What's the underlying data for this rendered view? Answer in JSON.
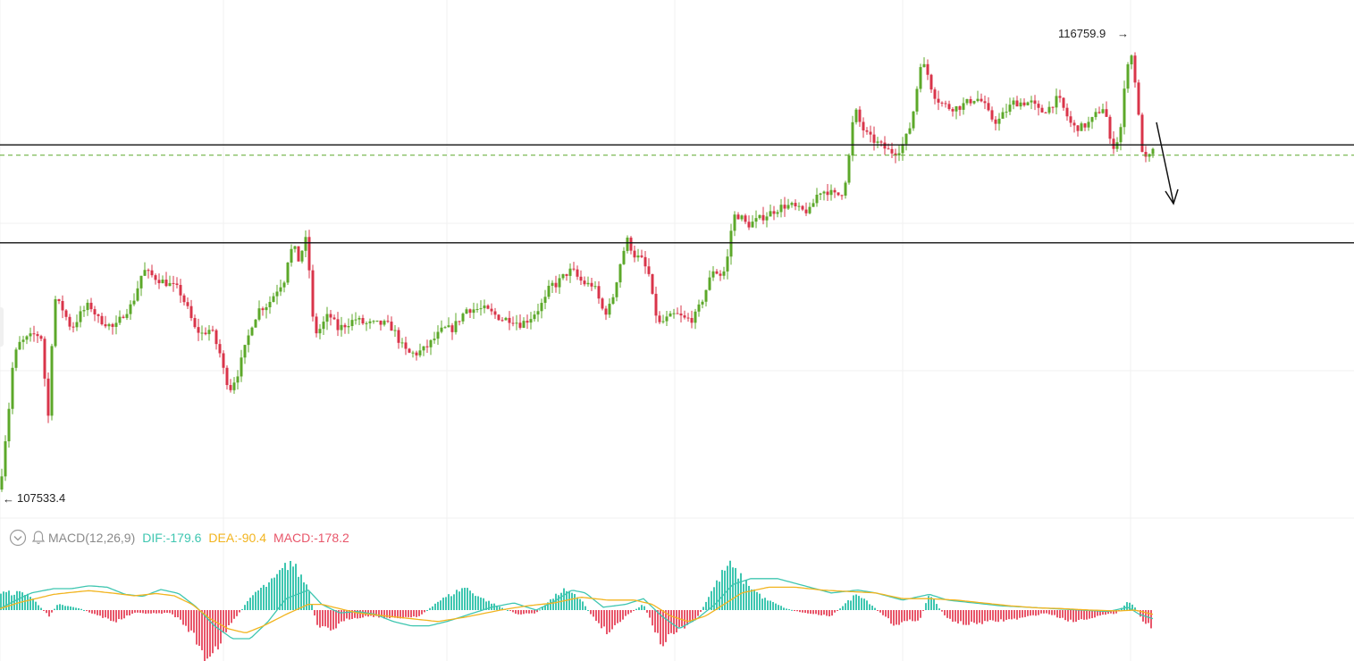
{
  "colors": {
    "up": "#5ca82a",
    "down": "#d9344a",
    "dif": "#3ec6b0",
    "dea": "#f2b41f",
    "macd_pos": "#3ec6b0",
    "macd_neg": "#e8566a",
    "level_line": "#111111",
    "dashed_line": "#5ca82a",
    "grid": "#f0f0f0"
  },
  "labels": {
    "high_price": "116759.9",
    "low_price": "107533.4"
  },
  "indicator": {
    "name": "MACD(12,26,9)",
    "dif": "DIF:-179.6",
    "dea": "DEA:-90.4",
    "macd": "MACD:-178.2",
    "icons": [
      "collapse-chevron-icon",
      "alert-bell-icon"
    ]
  },
  "chart_data": {
    "type": "candlestick",
    "price_max": 116759.9,
    "price_min": 107533.4,
    "horizontal_levels": [
      114540,
      112550
    ],
    "dashed_level": 114330,
    "projection_arrow": "down",
    "close_path": [
      [
        0,
        107533
      ],
      [
        5,
        108400
      ],
      [
        10,
        109200
      ],
      [
        15,
        110200
      ],
      [
        22,
        110500
      ],
      [
        30,
        110600
      ],
      [
        40,
        110700
      ],
      [
        48,
        110600
      ],
      [
        53,
        108600
      ],
      [
        57,
        110300
      ],
      [
        62,
        111400
      ],
      [
        70,
        111200
      ],
      [
        80,
        110800
      ],
      [
        90,
        111100
      ],
      [
        100,
        111300
      ],
      [
        110,
        111000
      ],
      [
        120,
        110900
      ],
      [
        128,
        110800
      ],
      [
        138,
        111100
      ],
      [
        148,
        111300
      ],
      [
        155,
        111700
      ],
      [
        160,
        112000
      ],
      [
        168,
        111900
      ],
      [
        178,
        111800
      ],
      [
        190,
        111700
      ],
      [
        200,
        111600
      ],
      [
        210,
        111200
      ],
      [
        218,
        110800
      ],
      [
        226,
        110700
      ],
      [
        236,
        110800
      ],
      [
        246,
        110300
      ],
      [
        252,
        109800
      ],
      [
        258,
        109600
      ],
      [
        266,
        109900
      ],
      [
        274,
        110400
      ],
      [
        282,
        110900
      ],
      [
        290,
        111200
      ],
      [
        300,
        111300
      ],
      [
        310,
        111600
      ],
      [
        318,
        111800
      ],
      [
        322,
        112200
      ],
      [
        328,
        112500
      ],
      [
        334,
        112200
      ],
      [
        338,
        112400
      ],
      [
        344,
        112700
      ],
      [
        348,
        111300
      ],
      [
        352,
        110700
      ],
      [
        358,
        110800
      ],
      [
        368,
        111100
      ],
      [
        378,
        110800
      ],
      [
        388,
        110900
      ],
      [
        398,
        111000
      ],
      [
        408,
        110900
      ],
      [
        420,
        110900
      ],
      [
        432,
        110900
      ],
      [
        440,
        110800
      ],
      [
        448,
        110500
      ],
      [
        456,
        110300
      ],
      [
        466,
        110300
      ],
      [
        476,
        110400
      ],
      [
        486,
        110600
      ],
      [
        496,
        110800
      ],
      [
        506,
        110800
      ],
      [
        514,
        111000
      ],
      [
        522,
        111200
      ],
      [
        532,
        111200
      ],
      [
        542,
        111200
      ],
      [
        552,
        111100
      ],
      [
        562,
        111000
      ],
      [
        572,
        111000
      ],
      [
        582,
        110900
      ],
      [
        592,
        111000
      ],
      [
        602,
        111200
      ],
      [
        610,
        111400
      ],
      [
        616,
        111700
      ],
      [
        622,
        111700
      ],
      [
        632,
        111900
      ],
      [
        640,
        112000
      ],
      [
        648,
        111800
      ],
      [
        656,
        111700
      ],
      [
        664,
        111700
      ],
      [
        670,
        111400
      ],
      [
        676,
        111100
      ],
      [
        684,
        111300
      ],
      [
        690,
        111800
      ],
      [
        696,
        112300
      ],
      [
        702,
        112600
      ],
      [
        710,
        112300
      ],
      [
        718,
        112200
      ],
      [
        726,
        111900
      ],
      [
        732,
        111200
      ],
      [
        738,
        110900
      ],
      [
        746,
        111000
      ],
      [
        756,
        111100
      ],
      [
        766,
        111000
      ],
      [
        776,
        111000
      ],
      [
        784,
        111300
      ],
      [
        792,
        111700
      ],
      [
        798,
        112000
      ],
      [
        806,
        111900
      ],
      [
        812,
        112000
      ],
      [
        816,
        112500
      ],
      [
        820,
        113100
      ],
      [
        828,
        113100
      ],
      [
        836,
        112900
      ],
      [
        846,
        113000
      ],
      [
        856,
        113100
      ],
      [
        866,
        113200
      ],
      [
        876,
        113300
      ],
      [
        886,
        113300
      ],
      [
        896,
        113200
      ],
      [
        906,
        113200
      ],
      [
        916,
        113600
      ],
      [
        926,
        113600
      ],
      [
        936,
        113500
      ],
      [
        944,
        113600
      ],
      [
        950,
        114300
      ],
      [
        956,
        115300
      ],
      [
        964,
        114900
      ],
      [
        972,
        114700
      ],
      [
        980,
        114600
      ],
      [
        988,
        114500
      ],
      [
        996,
        114400
      ],
      [
        1004,
        114400
      ],
      [
        1012,
        114600
      ],
      [
        1020,
        115000
      ],
      [
        1026,
        115700
      ],
      [
        1030,
        116200
      ],
      [
        1036,
        116100
      ],
      [
        1044,
        115600
      ],
      [
        1052,
        115400
      ],
      [
        1062,
        115300
      ],
      [
        1072,
        115300
      ],
      [
        1082,
        115400
      ],
      [
        1092,
        115500
      ],
      [
        1100,
        115400
      ],
      [
        1108,
        115100
      ],
      [
        1116,
        115000
      ],
      [
        1124,
        115200
      ],
      [
        1134,
        115400
      ],
      [
        1144,
        115400
      ],
      [
        1154,
        115400
      ],
      [
        1164,
        115200
      ],
      [
        1174,
        115300
      ],
      [
        1184,
        115500
      ],
      [
        1192,
        115200
      ],
      [
        1200,
        114900
      ],
      [
        1210,
        114900
      ],
      [
        1220,
        115000
      ],
      [
        1228,
        115200
      ],
      [
        1234,
        115300
      ],
      [
        1238,
        115100
      ],
      [
        1242,
        114600
      ],
      [
        1248,
        114500
      ],
      [
        1254,
        114900
      ],
      [
        1260,
        116000
      ],
      [
        1264,
        116500
      ],
      [
        1268,
        116200
      ],
      [
        1272,
        115500
      ],
      [
        1276,
        114700
      ],
      [
        1280,
        114200
      ],
      [
        1286,
        114300
      ],
      [
        1290,
        114400
      ]
    ],
    "macd": {
      "hist_path": [
        [
          0,
          60
        ],
        [
          30,
          60
        ],
        [
          55,
          -20
        ],
        [
          65,
          20
        ],
        [
          90,
          5
        ],
        [
          110,
          -20
        ],
        [
          130,
          -40
        ],
        [
          150,
          -10
        ],
        [
          175,
          -12
        ],
        [
          190,
          -10
        ],
        [
          200,
          -30
        ],
        [
          215,
          -80
        ],
        [
          230,
          -170
        ],
        [
          245,
          -120
        ],
        [
          260,
          -40
        ],
        [
          285,
          60
        ],
        [
          305,
          100
        ],
        [
          325,
          170
        ],
        [
          345,
          80
        ],
        [
          355,
          -60
        ],
        [
          370,
          -70
        ],
        [
          390,
          -30
        ],
        [
          415,
          -20
        ],
        [
          440,
          -30
        ],
        [
          470,
          -20
        ],
        [
          490,
          30
        ],
        [
          520,
          80
        ],
        [
          540,
          40
        ],
        [
          560,
          10
        ],
        [
          580,
          -15
        ],
        [
          600,
          -10
        ],
        [
          610,
          20
        ],
        [
          630,
          70
        ],
        [
          650,
          40
        ],
        [
          660,
          -10
        ],
        [
          680,
          -80
        ],
        [
          700,
          -20
        ],
        [
          720,
          20
        ],
        [
          740,
          -120
        ],
        [
          755,
          -80
        ],
        [
          780,
          -30
        ],
        [
          795,
          60
        ],
        [
          815,
          160
        ],
        [
          830,
          110
        ],
        [
          855,
          40
        ],
        [
          880,
          5
        ],
        [
          900,
          -10
        ],
        [
          930,
          -20
        ],
        [
          960,
          60
        ],
        [
          980,
          5
        ],
        [
          1000,
          -50
        ],
        [
          1030,
          -30
        ],
        [
          1040,
          60
        ],
        [
          1050,
          10
        ],
        [
          1060,
          -30
        ],
        [
          1080,
          -50
        ],
        [
          1110,
          -40
        ],
        [
          1140,
          -30
        ],
        [
          1170,
          -10
        ],
        [
          1200,
          -40
        ],
        [
          1230,
          -20
        ],
        [
          1250,
          -10
        ],
        [
          1262,
          30
        ],
        [
          1270,
          10
        ],
        [
          1280,
          -40
        ],
        [
          1290,
          -60
        ]
      ],
      "dif_path": [
        [
          0,
          5
        ],
        [
          15,
          30
        ],
        [
          35,
          60
        ],
        [
          60,
          75
        ],
        [
          80,
          75
        ],
        [
          100,
          85
        ],
        [
          120,
          80
        ],
        [
          140,
          55
        ],
        [
          160,
          48
        ],
        [
          180,
          72
        ],
        [
          200,
          58
        ],
        [
          220,
          10
        ],
        [
          240,
          -55
        ],
        [
          260,
          -100
        ],
        [
          280,
          -100
        ],
        [
          300,
          -40
        ],
        [
          320,
          40
        ],
        [
          345,
          70
        ],
        [
          360,
          20
        ],
        [
          380,
          -10
        ],
        [
          400,
          -5
        ],
        [
          420,
          -15
        ],
        [
          440,
          -40
        ],
        [
          460,
          -55
        ],
        [
          480,
          -55
        ],
        [
          500,
          -40
        ],
        [
          520,
          -20
        ],
        [
          550,
          10
        ],
        [
          575,
          25
        ],
        [
          600,
          0
        ],
        [
          620,
          30
        ],
        [
          640,
          70
        ],
        [
          655,
          60
        ],
        [
          675,
          10
        ],
        [
          700,
          20
        ],
        [
          720,
          40
        ],
        [
          740,
          -20
        ],
        [
          760,
          -65
        ],
        [
          780,
          -30
        ],
        [
          800,
          20
        ],
        [
          820,
          90
        ],
        [
          840,
          110
        ],
        [
          870,
          110
        ],
        [
          900,
          85
        ],
        [
          930,
          60
        ],
        [
          960,
          70
        ],
        [
          980,
          60
        ],
        [
          1010,
          35
        ],
        [
          1040,
          55
        ],
        [
          1060,
          35
        ],
        [
          1090,
          25
        ],
        [
          1120,
          15
        ],
        [
          1150,
          10
        ],
        [
          1180,
          5
        ],
        [
          1210,
          0
        ],
        [
          1240,
          -5
        ],
        [
          1262,
          10
        ],
        [
          1275,
          -15
        ],
        [
          1290,
          -30
        ]
      ],
      "dea_path": [
        [
          0,
          5
        ],
        [
          20,
          25
        ],
        [
          40,
          40
        ],
        [
          60,
          55
        ],
        [
          80,
          62
        ],
        [
          100,
          68
        ],
        [
          130,
          58
        ],
        [
          150,
          50
        ],
        [
          175,
          58
        ],
        [
          195,
          50
        ],
        [
          215,
          20
        ],
        [
          235,
          -30
        ],
        [
          255,
          -65
        ],
        [
          275,
          -80
        ],
        [
          295,
          -55
        ],
        [
          320,
          -15
        ],
        [
          345,
          20
        ],
        [
          360,
          20
        ],
        [
          380,
          5
        ],
        [
          400,
          -10
        ],
        [
          430,
          -20
        ],
        [
          460,
          -30
        ],
        [
          490,
          -40
        ],
        [
          520,
          -25
        ],
        [
          560,
          0
        ],
        [
          590,
          15
        ],
        [
          620,
          25
        ],
        [
          650,
          45
        ],
        [
          680,
          35
        ],
        [
          710,
          35
        ],
        [
          730,
          20
        ],
        [
          750,
          -20
        ],
        [
          770,
          -40
        ],
        [
          790,
          -20
        ],
        [
          810,
          20
        ],
        [
          830,
          60
        ],
        [
          860,
          80
        ],
        [
          890,
          80
        ],
        [
          920,
          70
        ],
        [
          950,
          65
        ],
        [
          980,
          60
        ],
        [
          1010,
          40
        ],
        [
          1040,
          40
        ],
        [
          1070,
          35
        ],
        [
          1100,
          25
        ],
        [
          1130,
          15
        ],
        [
          1160,
          8
        ],
        [
          1190,
          5
        ],
        [
          1220,
          0
        ],
        [
          1250,
          -3
        ],
        [
          1270,
          0
        ],
        [
          1290,
          -15
        ]
      ]
    }
  }
}
